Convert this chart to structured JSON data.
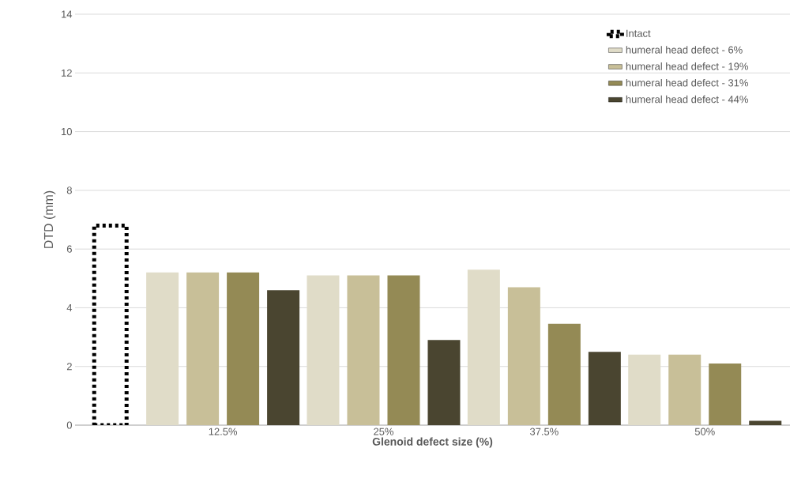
{
  "chart_data": {
    "type": "bar",
    "xlabel": "Glenoid defect size (%)",
    "ylabel": "DTD (mm)",
    "categories": [
      null,
      "12.5%",
      "25%",
      "37.5%",
      "50%"
    ],
    "ylim": [
      0,
      14
    ],
    "yticks": [
      0,
      2,
      4,
      6,
      8,
      10,
      12,
      14
    ],
    "grid": "y",
    "legend": "top right",
    "series": [
      {
        "name": "Intact",
        "color": "#000000",
        "line_style": "dotted",
        "values": [
          6.8,
          null,
          null,
          null,
          null
        ]
      },
      {
        "name": "humeral head defect - 6%",
        "color": "#e0dcc8",
        "values": [
          null,
          5.2,
          5.1,
          5.3,
          2.4
        ]
      },
      {
        "name": "humeral head defect - 19%",
        "color": "#c8bf98",
        "values": [
          null,
          5.2,
          5.1,
          4.7,
          2.4
        ]
      },
      {
        "name": "humeral head defect - 31%",
        "color": "#948a55",
        "values": [
          null,
          5.2,
          5.1,
          3.45,
          2.1
        ]
      },
      {
        "name": "humeral head defect - 44%",
        "color": "#4a4530",
        "values": [
          null,
          4.6,
          2.9,
          2.5,
          0.15
        ]
      }
    ]
  }
}
